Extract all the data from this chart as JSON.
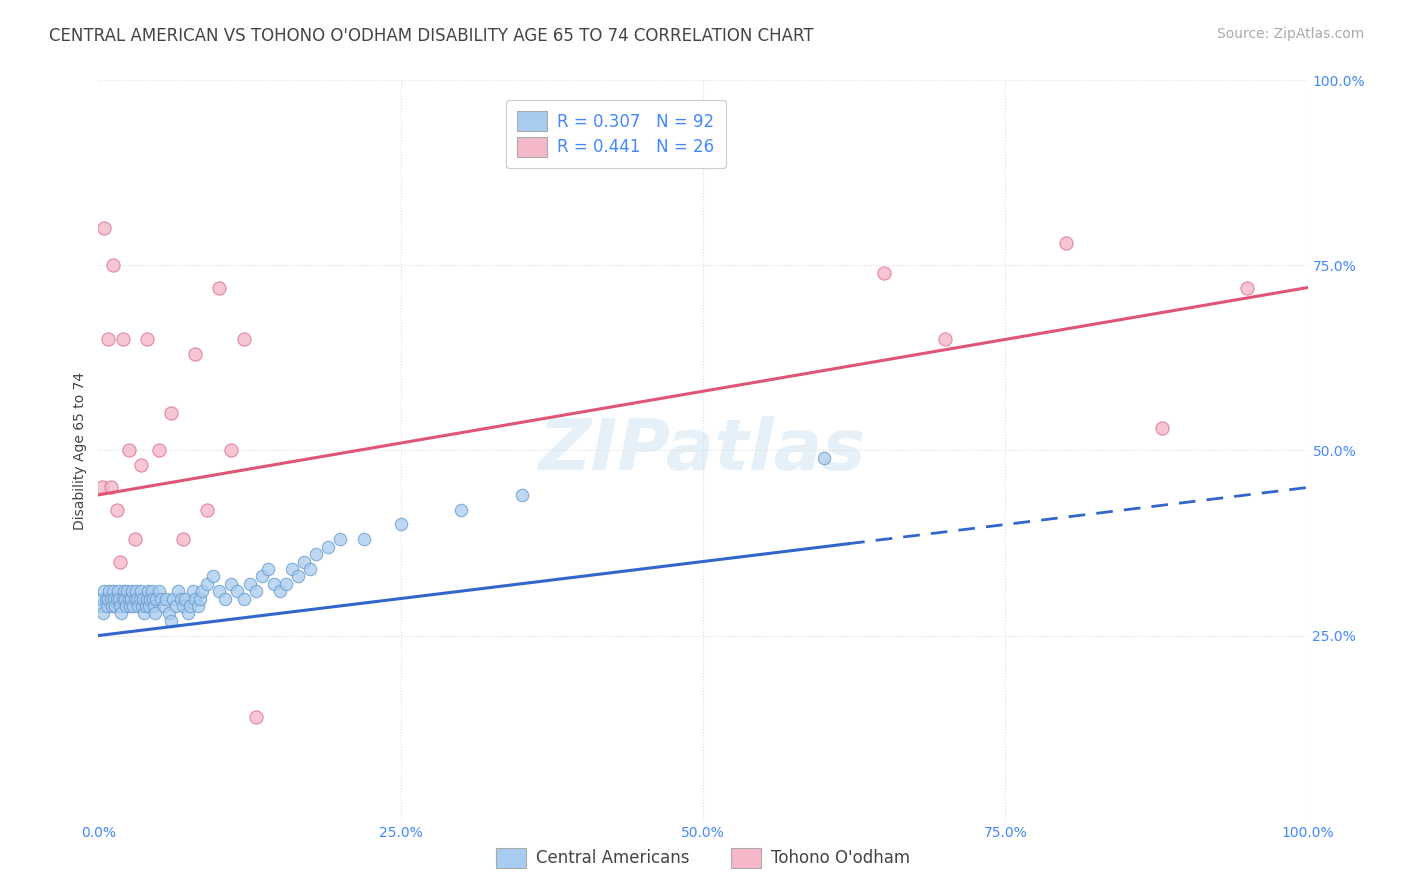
{
  "title": "CENTRAL AMERICAN VS TOHONO O'ODHAM DISABILITY AGE 65 TO 74 CORRELATION CHART",
  "source": "Source: ZipAtlas.com",
  "ylabel": "Disability Age 65 to 74",
  "background_color": "#ffffff",
  "plot_bg_color": "#ffffff",
  "watermark": "ZIPatlas",
  "blue_R": 0.307,
  "blue_N": 92,
  "pink_R": 0.441,
  "pink_N": 26,
  "blue_color": "#a8ccf0",
  "blue_edge_color": "#6699cc",
  "pink_color": "#f5b8c8",
  "pink_edge_color": "#e07090",
  "blue_line_color": "#3366cc",
  "pink_line_color": "#e05575",
  "blue_scatter_x": [
    0.2,
    0.3,
    0.4,
    0.5,
    0.6,
    0.7,
    0.8,
    0.9,
    1.0,
    1.1,
    1.2,
    1.3,
    1.4,
    1.5,
    1.6,
    1.7,
    1.8,
    1.9,
    2.0,
    2.1,
    2.2,
    2.3,
    2.4,
    2.5,
    2.6,
    2.7,
    2.8,
    2.9,
    3.0,
    3.1,
    3.2,
    3.3,
    3.4,
    3.5,
    3.6,
    3.7,
    3.8,
    3.9,
    4.0,
    4.1,
    4.2,
    4.3,
    4.4,
    4.5,
    4.6,
    4.7,
    4.8,
    5.0,
    5.2,
    5.4,
    5.6,
    5.8,
    6.0,
    6.2,
    6.4,
    6.6,
    6.8,
    7.0,
    7.2,
    7.4,
    7.6,
    7.8,
    8.0,
    8.2,
    8.4,
    8.6,
    9.0,
    9.5,
    10.0,
    10.5,
    11.0,
    11.5,
    12.0,
    12.5,
    13.0,
    13.5,
    14.0,
    14.5,
    15.0,
    15.5,
    16.0,
    16.5,
    17.0,
    17.5,
    18.0,
    19.0,
    20.0,
    22.0,
    25.0,
    30.0,
    35.0,
    60.0
  ],
  "blue_scatter_y": [
    29,
    30,
    28,
    31,
    30,
    29,
    30,
    31,
    30,
    29,
    31,
    30,
    29,
    30,
    31,
    30,
    29,
    28,
    30,
    31,
    30,
    29,
    31,
    30,
    29,
    30,
    31,
    29,
    30,
    31,
    30,
    29,
    30,
    31,
    29,
    30,
    28,
    29,
    30,
    31,
    29,
    30,
    31,
    30,
    29,
    28,
    30,
    31,
    30,
    29,
    30,
    28,
    27,
    30,
    29,
    31,
    30,
    29,
    30,
    28,
    29,
    31,
    30,
    29,
    30,
    31,
    32,
    33,
    31,
    30,
    32,
    31,
    30,
    32,
    31,
    33,
    34,
    32,
    31,
    32,
    34,
    33,
    35,
    34,
    36,
    37,
    38,
    38,
    40,
    42,
    44,
    49
  ],
  "pink_scatter_x": [
    0.3,
    0.5,
    0.8,
    1.0,
    1.2,
    1.5,
    1.8,
    2.0,
    2.5,
    3.0,
    3.5,
    4.0,
    5.0,
    6.0,
    7.0,
    8.0,
    9.0,
    10.0,
    11.0,
    12.0,
    13.0,
    65.0,
    70.0,
    80.0,
    88.0,
    95.0
  ],
  "pink_scatter_y": [
    45,
    80,
    65,
    45,
    75,
    42,
    35,
    65,
    50,
    38,
    48,
    65,
    50,
    55,
    38,
    63,
    42,
    72,
    50,
    65,
    14,
    74,
    65,
    78,
    53,
    72
  ],
  "blue_line_x0": 0,
  "blue_line_y0": 25,
  "blue_line_x1": 100,
  "blue_line_y1": 45,
  "blue_solid_end": 62,
  "pink_line_x0": 0,
  "pink_line_y0": 44,
  "pink_line_x1": 100,
  "pink_line_y1": 72,
  "xlim": [
    0,
    100
  ],
  "ylim": [
    0,
    100
  ],
  "xticks": [
    0,
    25,
    50,
    75,
    100
  ],
  "yticks": [
    25,
    50,
    75,
    100
  ],
  "xticklabels": [
    "0.0%",
    "25.0%",
    "50.0%",
    "75.0%",
    "100.0%"
  ],
  "yticklabels": [
    "25.0%",
    "50.0%",
    "75.0%",
    "100.0%"
  ],
  "legend_blue_label": "Central Americans",
  "legend_pink_label": "Tohono O'odham",
  "grid_color": "#dddddd",
  "title_fontsize": 12,
  "axis_label_fontsize": 10,
  "tick_fontsize": 10,
  "legend_fontsize": 12,
  "source_fontsize": 10,
  "watermark_fontsize": 52,
  "watermark_color": "#c8dff0",
  "watermark_alpha": 0.45,
  "tick_color": "#4488ff",
  "text_color": "#444444",
  "source_color": "#aaaaaa"
}
